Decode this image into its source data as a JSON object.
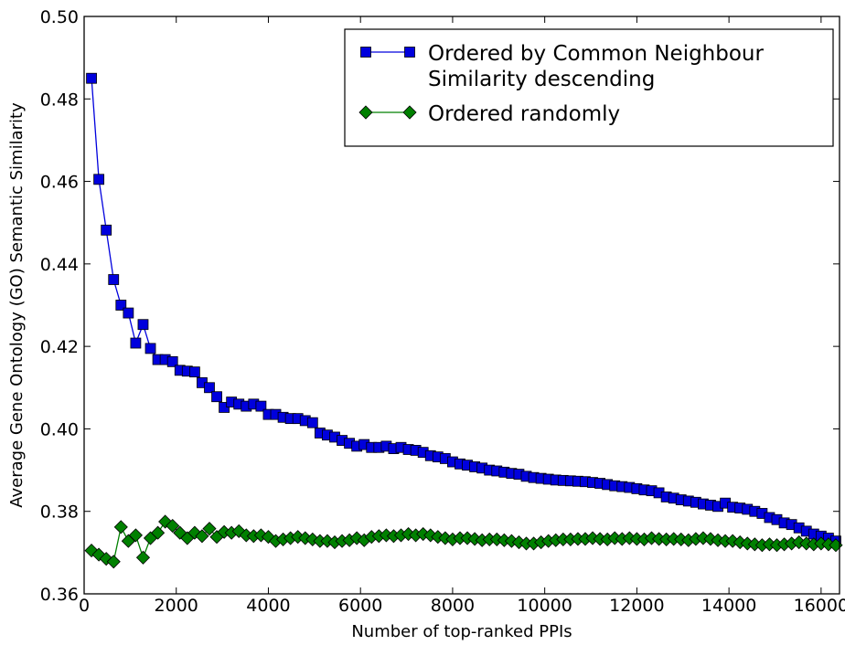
{
  "chart_data": {
    "type": "line",
    "title": "",
    "xlabel": "Number of top-ranked PPIs",
    "ylabel": "Average Gene Ontology (GO) Semantic Similarity",
    "xlim": [
      0,
      16400
    ],
    "ylim": [
      0.36,
      0.5
    ],
    "xticks": [
      0,
      2000,
      4000,
      6000,
      8000,
      10000,
      12000,
      14000,
      16000
    ],
    "yticks": [
      0.36,
      0.38,
      0.4,
      0.42,
      0.44,
      0.46,
      0.48,
      0.5
    ],
    "xtick_labels": [
      "0",
      "2000",
      "4000",
      "6000",
      "8000",
      "10000",
      "12000",
      "14000",
      "16000"
    ],
    "ytick_labels": [
      "0.36",
      "0.38",
      "0.40",
      "0.42",
      "0.44",
      "0.46",
      "0.48",
      "0.50"
    ],
    "grid": false,
    "legend_position": "top-right",
    "series": [
      {
        "name": "Ordered by Common Neighbour Similarity descending",
        "legend_lines": [
          "Ordered by Common Neighbour",
          "Similarity descending"
        ],
        "marker": "square",
        "color": "#0000dd",
        "x": [
          160,
          320,
          480,
          640,
          800,
          960,
          1120,
          1280,
          1440,
          1600,
          1760,
          1920,
          2080,
          2240,
          2400,
          2560,
          2720,
          2880,
          3040,
          3200,
          3360,
          3520,
          3680,
          3840,
          4000,
          4160,
          4320,
          4480,
          4640,
          4800,
          4960,
          5120,
          5280,
          5440,
          5600,
          5760,
          5920,
          6080,
          6240,
          6400,
          6560,
          6720,
          6880,
          7040,
          7200,
          7360,
          7520,
          7680,
          7840,
          8000,
          8160,
          8320,
          8480,
          8640,
          8800,
          8960,
          9120,
          9280,
          9440,
          9600,
          9760,
          9920,
          10080,
          10240,
          10400,
          10560,
          10720,
          10880,
          11040,
          11200,
          11360,
          11520,
          11680,
          11840,
          12000,
          12160,
          12320,
          12480,
          12640,
          12800,
          12960,
          13120,
          13280,
          13440,
          13600,
          13760,
          13920,
          14080,
          14240,
          14400,
          14560,
          14720,
          14880,
          15040,
          15200,
          15360,
          15520,
          15680,
          15840,
          16000,
          16160,
          16320
        ],
        "y": [
          0.485,
          0.4605,
          0.4482,
          0.4362,
          0.43,
          0.4281,
          0.4208,
          0.4253,
          0.4195,
          0.4168,
          0.4168,
          0.4163,
          0.4142,
          0.414,
          0.4138,
          0.4112,
          0.41,
          0.4078,
          0.4052,
          0.4065,
          0.406,
          0.4055,
          0.406,
          0.4055,
          0.4035,
          0.4035,
          0.4028,
          0.4025,
          0.4025,
          0.402,
          0.4015,
          0.399,
          0.3985,
          0.398,
          0.3972,
          0.3965,
          0.3958,
          0.3962,
          0.3955,
          0.3955,
          0.3958,
          0.3952,
          0.3955,
          0.395,
          0.3948,
          0.3943,
          0.3935,
          0.3932,
          0.3928,
          0.392,
          0.3915,
          0.3912,
          0.3908,
          0.3905,
          0.39,
          0.3898,
          0.3895,
          0.3892,
          0.389,
          0.3885,
          0.3882,
          0.388,
          0.3878,
          0.3876,
          0.3875,
          0.3874,
          0.3873,
          0.3872,
          0.387,
          0.3868,
          0.3865,
          0.3862,
          0.386,
          0.3858,
          0.3855,
          0.3852,
          0.385,
          0.3845,
          0.3835,
          0.3832,
          0.3828,
          0.3825,
          0.3822,
          0.3818,
          0.3815,
          0.3812,
          0.382,
          0.381,
          0.3808,
          0.3805,
          0.38,
          0.3795,
          0.3785,
          0.378,
          0.3772,
          0.3768,
          0.376,
          0.3752,
          0.3745,
          0.374,
          0.3735,
          0.3728
        ]
      },
      {
        "name": "Ordered randomly",
        "legend_lines": [
          "Ordered randomly"
        ],
        "marker": "diamond",
        "color": "#008000",
        "x": [
          160,
          320,
          480,
          640,
          800,
          960,
          1120,
          1280,
          1440,
          1600,
          1760,
          1920,
          2080,
          2240,
          2400,
          2560,
          2720,
          2880,
          3040,
          3200,
          3360,
          3520,
          3680,
          3840,
          4000,
          4160,
          4320,
          4480,
          4640,
          4800,
          4960,
          5120,
          5280,
          5440,
          5600,
          5760,
          5920,
          6080,
          6240,
          6400,
          6560,
          6720,
          6880,
          7040,
          7200,
          7360,
          7520,
          7680,
          7840,
          8000,
          8160,
          8320,
          8480,
          8640,
          8800,
          8960,
          9120,
          9280,
          9440,
          9600,
          9760,
          9920,
          10080,
          10240,
          10400,
          10560,
          10720,
          10880,
          11040,
          11200,
          11360,
          11520,
          11680,
          11840,
          12000,
          12160,
          12320,
          12480,
          12640,
          12800,
          12960,
          13120,
          13280,
          13440,
          13600,
          13760,
          13920,
          14080,
          14240,
          14400,
          14560,
          14720,
          14880,
          15040,
          15200,
          15360,
          15520,
          15680,
          15840,
          16000,
          16160,
          16320
        ],
        "y": [
          0.3705,
          0.3695,
          0.3685,
          0.3678,
          0.3762,
          0.3728,
          0.3742,
          0.3688,
          0.3735,
          0.3748,
          0.3775,
          0.3765,
          0.3748,
          0.3735,
          0.3748,
          0.374,
          0.3758,
          0.3738,
          0.375,
          0.3748,
          0.3752,
          0.3742,
          0.374,
          0.3742,
          0.3738,
          0.3728,
          0.3732,
          0.3735,
          0.3738,
          0.3735,
          0.3732,
          0.3728,
          0.3728,
          0.3725,
          0.3728,
          0.373,
          0.3735,
          0.373,
          0.3738,
          0.374,
          0.3742,
          0.374,
          0.3742,
          0.3745,
          0.3742,
          0.3745,
          0.3742,
          0.3738,
          0.3735,
          0.3732,
          0.3735,
          0.3735,
          0.3733,
          0.373,
          0.3732,
          0.3732,
          0.373,
          0.3728,
          0.3725,
          0.3722,
          0.3722,
          0.3725,
          0.3728,
          0.373,
          0.3732,
          0.3732,
          0.3733,
          0.3733,
          0.3735,
          0.3733,
          0.3732,
          0.3735,
          0.3733,
          0.3735,
          0.3733,
          0.3732,
          0.3735,
          0.3733,
          0.3732,
          0.3733,
          0.3732,
          0.373,
          0.3733,
          0.3735,
          0.3733,
          0.373,
          0.3728,
          0.3728,
          0.3725,
          0.3722,
          0.372,
          0.3718,
          0.372,
          0.3718,
          0.372,
          0.3722,
          0.3725,
          0.3722,
          0.372,
          0.3722,
          0.372,
          0.3718
        ]
      }
    ]
  }
}
